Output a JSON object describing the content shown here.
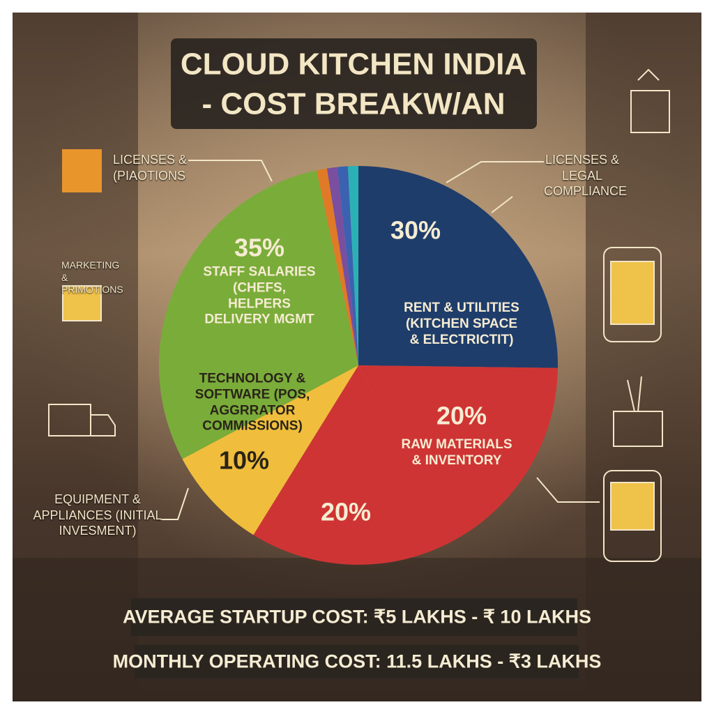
{
  "chart_data": {
    "type": "pie",
    "title": "CLOUD KITCHEN INDIA",
    "subtitle": "- COST BREAKW/AN",
    "categories": [
      "RENT & UTILITIES (KITCHEN SPACE & ELECTRICTIT)",
      "RAW MATERIALS & INVENTORY",
      null,
      "TECHNOLOGY & SOFTWARE (POS, AGGRRATOR COMMISSIONS)",
      "STAFF SALARIES (CHEFS, HELPERS DELIVERY MGMT",
      null,
      null,
      null,
      null
    ],
    "values": [
      30,
      20,
      20,
      10,
      35,
      1,
      1,
      1,
      1
    ],
    "value_labels": [
      "30%",
      "20%",
      "20%",
      "10%",
      "35%",
      null,
      null,
      null,
      null
    ],
    "colors": [
      "#1f3d6b",
      "#cf3434",
      "#cf3434",
      "#f0be3c",
      "#7aac3a",
      "#e07a26",
      "#7a4fa0",
      "#3a62b0",
      "#2bb1b5"
    ],
    "annotations": [
      "LICENSES & (PIAOTIONS",
      "MARKETING & PRIMOTIONS",
      "LICENSES & LEGAL COMPLIANCE",
      "EQUIPMENT & APPLIANCES (INITIAL INVESMENT)"
    ],
    "footer": [
      "AVERAGE STARTUP COST: ₹5 LAKHS - ₹ 10 LAKHS",
      "MONTHLY OPERATING COST: 11.5 LAKHS - ₹3 LAKHS"
    ]
  }
}
